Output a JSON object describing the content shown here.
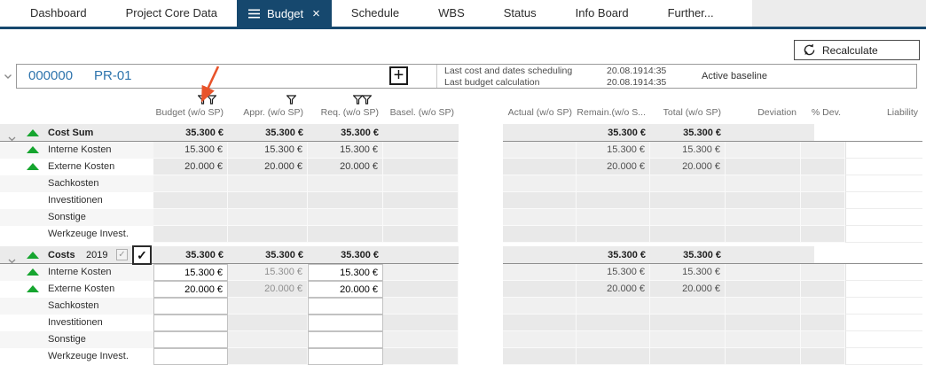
{
  "tabs": [
    {
      "label": "Dashboard",
      "active": false
    },
    {
      "label": "Project Core Data",
      "active": false
    },
    {
      "label": "Budget",
      "active": true
    },
    {
      "label": "Schedule",
      "active": false
    },
    {
      "label": "WBS",
      "active": false
    },
    {
      "label": "Status",
      "active": false
    },
    {
      "label": "Info Board",
      "active": false
    },
    {
      "label": "Further...",
      "active": false
    }
  ],
  "toolbar": {
    "recalculate_label": "Recalculate"
  },
  "project": {
    "id": "000000",
    "code": "PR-01",
    "info": [
      {
        "label": "Last cost and dates scheduling",
        "date": "20.08.19",
        "time": "14:35"
      },
      {
        "label": "Last budget calculation",
        "date": "20.08.19",
        "time": "14:35"
      }
    ],
    "baseline_label": "Active baseline"
  },
  "columns": [
    {
      "key": "budget",
      "label": "Budget (w/o SP)",
      "filters": 2
    },
    {
      "key": "appr",
      "label": "Appr. (w/o SP)",
      "filters": 1
    },
    {
      "key": "req",
      "label": "Req. (w/o SP)",
      "filters": 2
    },
    {
      "key": "basel",
      "label": "Basel. (w/o SP)",
      "filters": 0
    },
    {
      "key": "actual",
      "label": "Actual (w/o SP)",
      "filters": 0
    },
    {
      "key": "remain",
      "label": "Remain.(w/o S...",
      "filters": 0
    },
    {
      "key": "total",
      "label": "Total (w/o SP)",
      "filters": 0
    },
    {
      "key": "deviation",
      "label": "Deviation",
      "filters": 0
    },
    {
      "key": "pdev",
      "label": "% Dev.",
      "filters": 0
    },
    {
      "key": "liability",
      "label": "Liability",
      "filters": 0
    }
  ],
  "groups": [
    {
      "title": "Cost Sum",
      "year": null,
      "checkboxes": false,
      "editable": false,
      "totals": {
        "budget": "35.300 €",
        "appr": "35.300 €",
        "req": "35.300 €",
        "remain": "35.300 €",
        "total": "35.300 €"
      },
      "rows": [
        {
          "label": "Interne Kosten",
          "trend": "up",
          "values": {
            "budget": "15.300 €",
            "appr": "15.300 €",
            "req": "15.300 €",
            "remain": "15.300 €",
            "total": "15.300 €"
          }
        },
        {
          "label": "Externe Kosten",
          "trend": "up",
          "values": {
            "budget": "20.000 €",
            "appr": "20.000 €",
            "req": "20.000 €",
            "remain": "20.000 €",
            "total": "20.000 €"
          }
        },
        {
          "label": "Sachkosten",
          "trend": null,
          "values": {}
        },
        {
          "label": "Investitionen",
          "trend": null,
          "values": {}
        },
        {
          "label": "Sonstige",
          "trend": null,
          "values": {}
        },
        {
          "label": "Werkzeuge Invest.",
          "trend": null,
          "values": {}
        }
      ]
    },
    {
      "title": "Costs",
      "year": "2019",
      "checkboxes": true,
      "editable": true,
      "totals": {
        "budget": "35.300 €",
        "appr": "35.300 €",
        "req": "35.300 €",
        "remain": "35.300 €",
        "total": "35.300 €"
      },
      "rows": [
        {
          "label": "Interne Kosten",
          "trend": "up",
          "values": {
            "budget": "15.300 €",
            "appr": "15.300 €",
            "req": "15.300 €",
            "remain": "15.300 €",
            "total": "15.300 €"
          }
        },
        {
          "label": "Externe Kosten",
          "trend": "up",
          "values": {
            "budget": "20.000 €",
            "appr": "20.000 €",
            "req": "20.000 €",
            "remain": "20.000 €",
            "total": "20.000 €"
          }
        },
        {
          "label": "Sachkosten",
          "trend": null,
          "values": {}
        },
        {
          "label": "Investitionen",
          "trend": null,
          "values": {}
        },
        {
          "label": "Sonstige",
          "trend": null,
          "values": {}
        },
        {
          "label": "Werkzeuge Invest.",
          "trend": null,
          "values": {}
        }
      ]
    }
  ],
  "icons": {
    "plus": "+",
    "close": "×",
    "check": "✓"
  },
  "colors": {
    "accent_navy": "#16486e",
    "link_blue": "#2e74ad",
    "trend_green": "#16a52f",
    "arrow_orange": "#e8532a",
    "group_row_bg": "#ebebeb"
  }
}
